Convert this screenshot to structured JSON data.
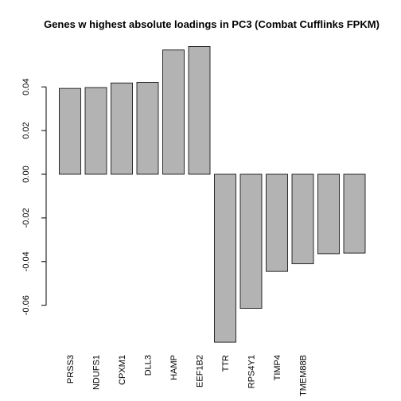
{
  "chart_data": {
    "type": "bar",
    "title": "Genes w highest absolute loadings in PC3 (Combat Cufflinks FPKM)",
    "xlabel": "",
    "ylabel": "",
    "categories": [
      "PRSS3",
      "NDUFS1",
      "CPXM1",
      "DLL3",
      "HAMP",
      "EEF1B2",
      "TTR",
      "RPS4Y1",
      "TIMP4",
      "TMEM88B",
      "",
      ""
    ],
    "values": [
      0.0393,
      0.0397,
      0.0418,
      0.0421,
      0.0569,
      0.0585,
      -0.0769,
      -0.0614,
      -0.0445,
      -0.041,
      -0.0364,
      -0.0361
    ],
    "yticks": [
      -0.06,
      -0.04,
      -0.02,
      0.0,
      0.02,
      0.04
    ],
    "ytick_labels": [
      "-0.06",
      "-0.04",
      "-0.02",
      "0.00",
      "0.02",
      "0.04"
    ],
    "ylim": [
      -0.0775,
      0.06
    ],
    "bar_color": "#b3b3b3",
    "grid": false
  }
}
